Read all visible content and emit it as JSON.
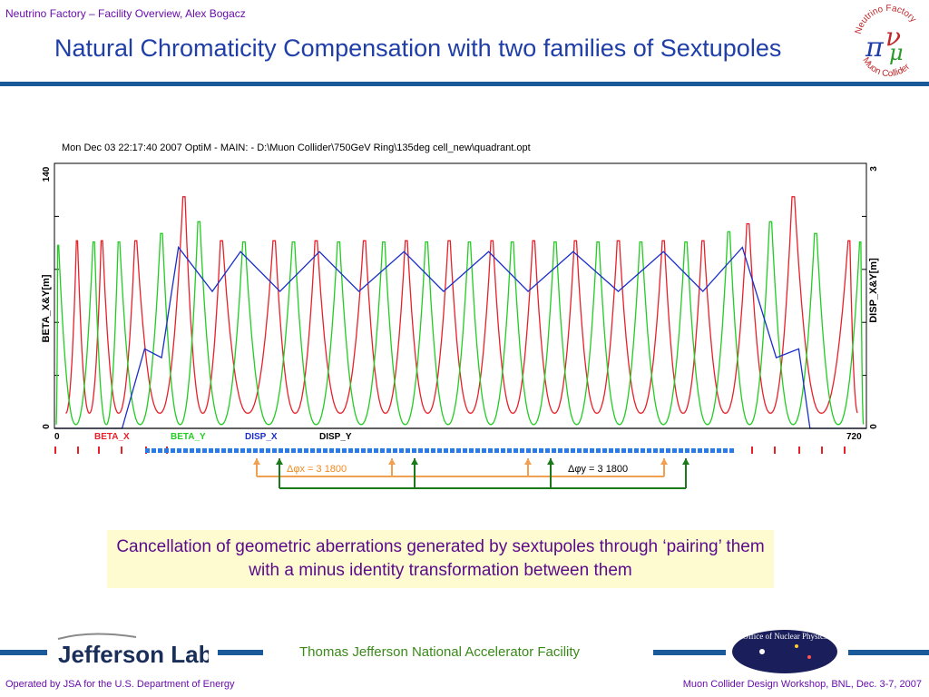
{
  "header": {
    "small_title": "Neutrino Factory – Facility Overview, Alex Bogacz",
    "title": "Natural Chromaticity Compensation with two families of Sextupoles"
  },
  "logo_top": {
    "text1": "Neutrino Factory",
    "text2": "Muon Collider",
    "glyph": "πν μ"
  },
  "chart_data": {
    "type": "line",
    "title": "Mon Dec 03 22:17:40 2007    OptiM - MAIN: - D:\\Muon Collider\\750GeV Ring\\135deg cell_new\\quadrant.opt",
    "xlabel": "",
    "ylabel_left": "BETA_X&Y[m]",
    "ylabel_right": "DISP_X&Y[m]",
    "xlim": [
      0,
      720
    ],
    "ylim_left": [
      0,
      140
    ],
    "ylim_right": [
      0,
      3
    ],
    "x_ticks": [
      "0",
      "720"
    ],
    "y_left_ticks": [
      "0",
      "140"
    ],
    "y_right_ticks": [
      "0",
      "3"
    ],
    "series": [
      {
        "name": "BETA_X",
        "color": "#e8202a",
        "peak_x": [
          20,
          42,
          72,
          115,
          148,
          195,
          232,
          275,
          312,
          350,
          388,
          425,
          462,
          500,
          540,
          575,
          615,
          655,
          705
        ],
        "peak_y": [
          110,
          110,
          110,
          136,
          110,
          110,
          110,
          110,
          110,
          110,
          110,
          110,
          110,
          110,
          110,
          110,
          120,
          136,
          110
        ],
        "min_y": 8
      },
      {
        "name": "BETA_Y",
        "color": "#22cc22",
        "peak_x": [
          3,
          35,
          57,
          95,
          128,
          168,
          212,
          252,
          292,
          330,
          368,
          406,
          444,
          482,
          520,
          560,
          598,
          635,
          675,
          715
        ],
        "peak_y": [
          108,
          110,
          110,
          115,
          122,
          110,
          110,
          110,
          110,
          110,
          110,
          110,
          110,
          110,
          110,
          110,
          116,
          122,
          115,
          110
        ],
        "min_y": 2
      },
      {
        "name": "DISP_X",
        "color": "#1a2ecc",
        "x": [
          0,
          60,
          80,
          95,
          110,
          140,
          165,
          200,
          235,
          270,
          310,
          345,
          385,
          420,
          460,
          500,
          540,
          575,
          610,
          640,
          660,
          670,
          690,
          720
        ],
        "y": [
          0,
          0,
          0.9,
          0.8,
          2.05,
          1.55,
          2.0,
          1.55,
          2.0,
          1.55,
          2.0,
          1.55,
          2.0,
          1.55,
          2.0,
          1.55,
          2.0,
          1.55,
          2.05,
          0.8,
          0.9,
          0,
          0,
          0
        ]
      },
      {
        "name": "DISP_Y",
        "color": "#000000",
        "x": [
          0,
          720
        ],
        "y": [
          0,
          0
        ]
      }
    ],
    "annotations": [
      {
        "text": "Δφx = 3 1800",
        "color": "#f08a20"
      },
      {
        "text": "Δφy = 3 1800",
        "color": "#000000"
      }
    ]
  },
  "caption": "Cancellation of geometric aberrations generated by sextupoles through ‘pairing’ them with a minus identity transformation between them",
  "footer": {
    "facility": "Thomas Jefferson National Accelerator Facility",
    "left": "Operated by JSA for the U.S. Department of Energy",
    "right": "Muon Collider Design Workshop, BNL, Dec. 3-7, 2007",
    "jlab": "Jefferson Lab",
    "onp": "Office of Nuclear Physics"
  }
}
